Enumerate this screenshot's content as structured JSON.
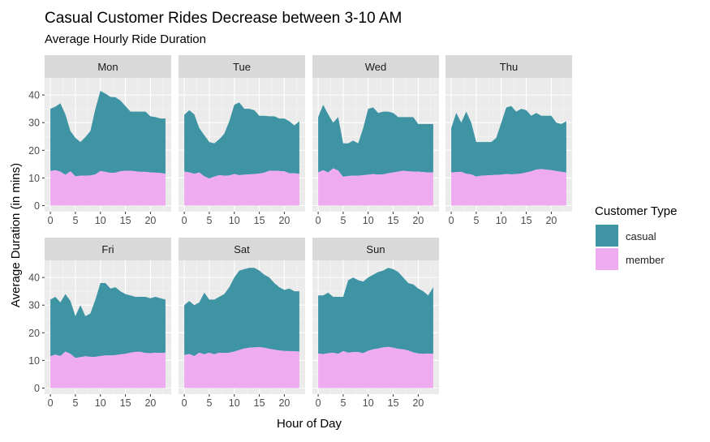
{
  "chart_data": {
    "type": "area",
    "stacked": true,
    "faceted": true,
    "title": "Casual Customer Rides Decrease between 3-10 AM",
    "subtitle": "Average Hourly Ride Duration",
    "xlabel": "Hour of Day",
    "ylabel": "Average Duration (in mins)",
    "xlim": [
      0,
      23
    ],
    "ylim": [
      0,
      44
    ],
    "x_ticks": [
      0,
      5,
      10,
      15,
      20
    ],
    "y_ticks": [
      0,
      10,
      20,
      30,
      40
    ],
    "grid": true,
    "legend": {
      "title": "Customer Type",
      "position": "right",
      "entries": [
        {
          "name": "casual",
          "color": "#3F94A3"
        },
        {
          "name": "member",
          "color": "#EEABEF"
        }
      ]
    },
    "x": [
      0,
      1,
      2,
      3,
      4,
      5,
      6,
      7,
      8,
      9,
      10,
      11,
      12,
      13,
      14,
      15,
      16,
      17,
      18,
      19,
      20,
      21,
      22,
      23
    ],
    "panels": [
      {
        "day": "Mon",
        "member": [
          12.5,
          12.8,
          12.3,
          11.1,
          12.4,
          10.6,
          10.8,
          10.8,
          10.9,
          11.3,
          12.5,
          12.2,
          11.8,
          11.9,
          12.4,
          12.6,
          12.6,
          12.4,
          12.2,
          12.2,
          12.0,
          11.9,
          11.8,
          11.5
        ],
        "total": [
          35.0,
          35.8,
          37.0,
          33.0,
          27.0,
          24.5,
          23.0,
          24.8,
          27.0,
          35.0,
          41.5,
          40.5,
          39.3,
          39.2,
          38.0,
          36.0,
          34.0,
          34.0,
          34.0,
          34.0,
          32.3,
          32.0,
          31.5,
          31.5
        ]
      },
      {
        "day": "Tue",
        "member": [
          12.3,
          12.0,
          11.5,
          12.0,
          10.6,
          9.8,
          10.5,
          11.0,
          10.8,
          10.9,
          11.4,
          11.0,
          11.2,
          11.3,
          11.4,
          11.6,
          11.9,
          12.6,
          12.6,
          12.5,
          12.4,
          11.7,
          11.7,
          11.5
        ],
        "total": [
          32.8,
          34.5,
          33.0,
          28.0,
          25.5,
          23.0,
          22.5,
          24.0,
          26.0,
          30.5,
          36.5,
          37.3,
          35.0,
          35.0,
          34.5,
          32.5,
          32.5,
          32.3,
          32.3,
          31.5,
          31.5,
          30.5,
          29.0,
          30.5
        ]
      },
      {
        "day": "Wed",
        "member": [
          12.0,
          12.8,
          12.0,
          13.5,
          12.7,
          10.4,
          10.7,
          10.8,
          10.8,
          11.0,
          11.2,
          11.4,
          11.2,
          11.3,
          11.7,
          12.0,
          12.3,
          12.6,
          12.4,
          12.3,
          12.3,
          12.1,
          12.0,
          12.0
        ],
        "total": [
          32.0,
          36.5,
          33.0,
          30.0,
          32.0,
          22.5,
          22.5,
          23.5,
          22.5,
          28.0,
          35.0,
          35.5,
          33.5,
          34.0,
          34.0,
          33.5,
          32.0,
          32.0,
          32.0,
          32.0,
          29.5,
          29.5,
          29.5,
          29.5
        ]
      },
      {
        "day": "Thu",
        "member": [
          12.0,
          12.1,
          12.2,
          11.5,
          11.3,
          10.5,
          10.8,
          10.9,
          11.0,
          11.1,
          11.2,
          11.4,
          11.3,
          11.4,
          11.6,
          12.0,
          12.4,
          13.0,
          13.2,
          13.0,
          12.8,
          12.5,
          12.2,
          12.0
        ],
        "total": [
          28.0,
          33.5,
          30.0,
          34.0,
          30.0,
          23.0,
          23.0,
          23.0,
          23.0,
          24.5,
          30.0,
          35.5,
          36.0,
          34.0,
          35.0,
          34.5,
          32.5,
          33.5,
          32.5,
          32.5,
          32.5,
          30.0,
          29.5,
          30.5
        ]
      },
      {
        "day": "Fri",
        "member": [
          11.5,
          12.1,
          11.6,
          13.2,
          12.4,
          10.9,
          11.2,
          11.5,
          11.3,
          11.3,
          11.6,
          11.8,
          11.8,
          11.9,
          12.2,
          12.4,
          12.8,
          13.1,
          13.1,
          12.7,
          12.6,
          12.8,
          12.7,
          12.8
        ],
        "total": [
          32.0,
          33.0,
          31.0,
          34.0,
          31.5,
          26.0,
          30.0,
          26.0,
          27.0,
          32.0,
          38.0,
          38.0,
          36.0,
          36.5,
          35.0,
          34.0,
          33.5,
          33.0,
          33.0,
          33.0,
          32.5,
          33.0,
          32.5,
          32.0
        ]
      },
      {
        "day": "Sat",
        "member": [
          12.0,
          12.3,
          11.6,
          12.8,
          12.2,
          12.8,
          12.2,
          12.8,
          12.7,
          12.8,
          13.2,
          13.8,
          14.3,
          14.6,
          14.7,
          14.8,
          14.6,
          14.2,
          13.9,
          13.6,
          13.4,
          13.4,
          13.3,
          13.2
        ],
        "total": [
          30.0,
          31.5,
          30.0,
          31.0,
          34.5,
          32.0,
          32.0,
          33.0,
          34.0,
          36.5,
          40.0,
          42.5,
          43.0,
          43.5,
          43.5,
          42.5,
          41.0,
          40.0,
          38.0,
          36.5,
          35.5,
          36.0,
          35.0,
          35.0
        ]
      },
      {
        "day": "Sun",
        "member": [
          12.5,
          12.3,
          12.6,
          12.8,
          12.4,
          13.4,
          12.8,
          13.0,
          13.0,
          12.6,
          13.5,
          14.0,
          14.3,
          14.7,
          14.9,
          14.6,
          14.2,
          14.0,
          13.6,
          12.9,
          12.5,
          12.4,
          12.5,
          12.4
        ],
        "total": [
          33.5,
          33.5,
          34.5,
          33.0,
          33.0,
          33.0,
          39.0,
          40.0,
          39.0,
          38.5,
          40.0,
          41.0,
          42.0,
          42.5,
          43.5,
          43.0,
          42.0,
          40.0,
          38.0,
          37.5,
          36.0,
          35.0,
          33.5,
          36.5
        ]
      }
    ]
  }
}
